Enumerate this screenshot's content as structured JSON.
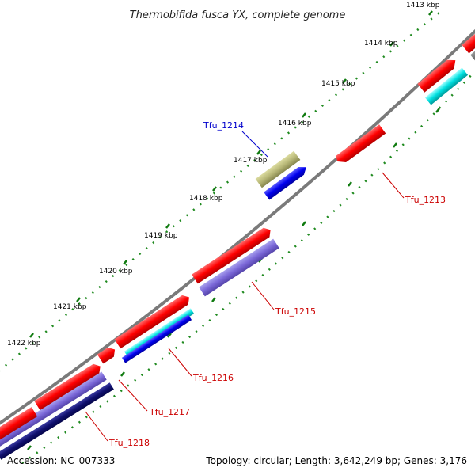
{
  "title": "Thermobifida fusca YX, complete genome",
  "ticks": [
    "1413 kbp",
    "1414 kbp",
    "1415 kbp",
    "1416 kbp",
    "1417 kbp",
    "1418 kbp",
    "1419 kbp",
    "1420 kbp",
    "1421 kbp",
    "1422 kbp"
  ],
  "genes": [
    {
      "id": "Tfu_1213",
      "color": "#cc0000"
    },
    {
      "id": "Tfu_1214",
      "color": "#0000cc"
    },
    {
      "id": "Tfu_1215",
      "color": "#cc0000"
    },
    {
      "id": "Tfu_1216",
      "color": "#cc0000"
    },
    {
      "id": "Tfu_1217",
      "color": "#cc0000"
    },
    {
      "id": "Tfu_1218",
      "color": "#cc0000"
    }
  ],
  "footer": {
    "accession": "Accession: NC_007333",
    "summary": "Topology: circular; Length: 3,642,249 bp; Genes: 3,176"
  }
}
